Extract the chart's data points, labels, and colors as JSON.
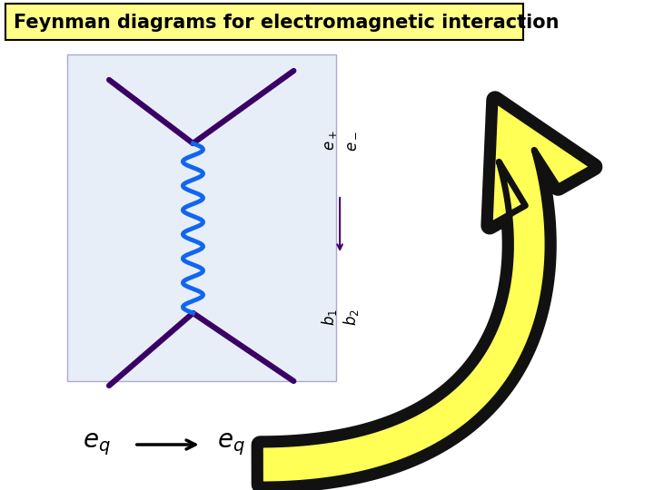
{
  "title": "Feynman diagrams for electromagnetic interaction",
  "title_fontsize": 15,
  "title_bg": "#ffff88",
  "title_border": "#000000",
  "bg_color": "#ffffff",
  "diagram_bg": "#e8eef8",
  "arrow_yellow": "#ffff55",
  "arrow_black": "#111111",
  "line_color": "#3a0066",
  "wavy_color": "#1166ee"
}
